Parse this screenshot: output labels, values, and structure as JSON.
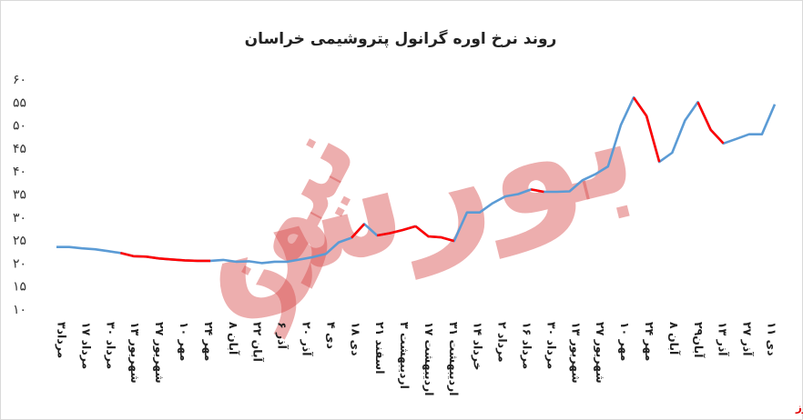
{
  "chart_data": {
    "type": "line",
    "title": "روند نرخ اوره گرانول پتروشیمی خراسان",
    "xlabel": "",
    "ylabel": "",
    "ylim": [
      10,
      60
    ],
    "y_ticks": [
      "۶۰",
      "۵۵",
      "۵۰",
      "۴۵",
      "۴۰",
      "۳۵",
      "۳۰",
      "۲۵",
      "۲۰",
      "۱۵",
      "۱۰"
    ],
    "grid": false,
    "legend": "none",
    "x_labels": [
      "۳مرداد",
      "۱۷ مرداد",
      "۳۰ مرداد",
      "۱۳ شهریور",
      "۲۷ شهریور",
      "۱۰ مهر",
      "۲۴ مهر",
      "۸ آبان",
      "۲۲ آبان",
      "۶ آذر",
      "۲۰ آذر",
      "۴ دی",
      "۱۸ دی",
      "۲۱ اسفند",
      "۳ اردیبهشت",
      "۱۷ اردیبهشت",
      "۳۱ اردیبهشت",
      "۱۴ خرداد",
      "۲ مرداد",
      "۱۶ مرداد",
      "۳۰ مرداد",
      "۱۳ شهریور",
      "۲۷ شهریور",
      "۱۰ مهر",
      "۲۴ مهر",
      "۸ آبان",
      "۲۹آبان",
      "۱۳ آذر",
      "۲۷ آذر",
      "۱۱ دی"
    ],
    "values": [
      23.5,
      23.5,
      23.2,
      23.0,
      22.6,
      22.2,
      21.5,
      21.4,
      21.0,
      20.8,
      20.6,
      20.5,
      20.5,
      20.7,
      20.3,
      20.4,
      20.0,
      20.3,
      20.3,
      20.8,
      21.3,
      22.0,
      24.5,
      25.5,
      28.5,
      26.0,
      26.5,
      27.2,
      28.0,
      25.8,
      25.6,
      24.8,
      31.0,
      31.0,
      33.0,
      34.5,
      35.0,
      36.0,
      35.5,
      35.5,
      35.6,
      38.0,
      39.3,
      41.0,
      50.0,
      56.0,
      52.0,
      42.0,
      44.0,
      51.0,
      55.0,
      49.0,
      46.0,
      47.0,
      48.0,
      48.0,
      54.5
    ],
    "line_color": "#5b9bd5",
    "highlight_color": "#ff0000",
    "highlight_segments": [
      [
        5,
        12
      ],
      [
        23,
        24
      ],
      [
        25,
        28
      ],
      [
        28,
        31
      ],
      [
        37,
        38
      ],
      [
        45,
        47
      ],
      [
        50,
        52
      ]
    ]
  },
  "watermark": {
    "line1": "بورس",
    "line2": "نیوز"
  },
  "source": "بورس نیوز"
}
